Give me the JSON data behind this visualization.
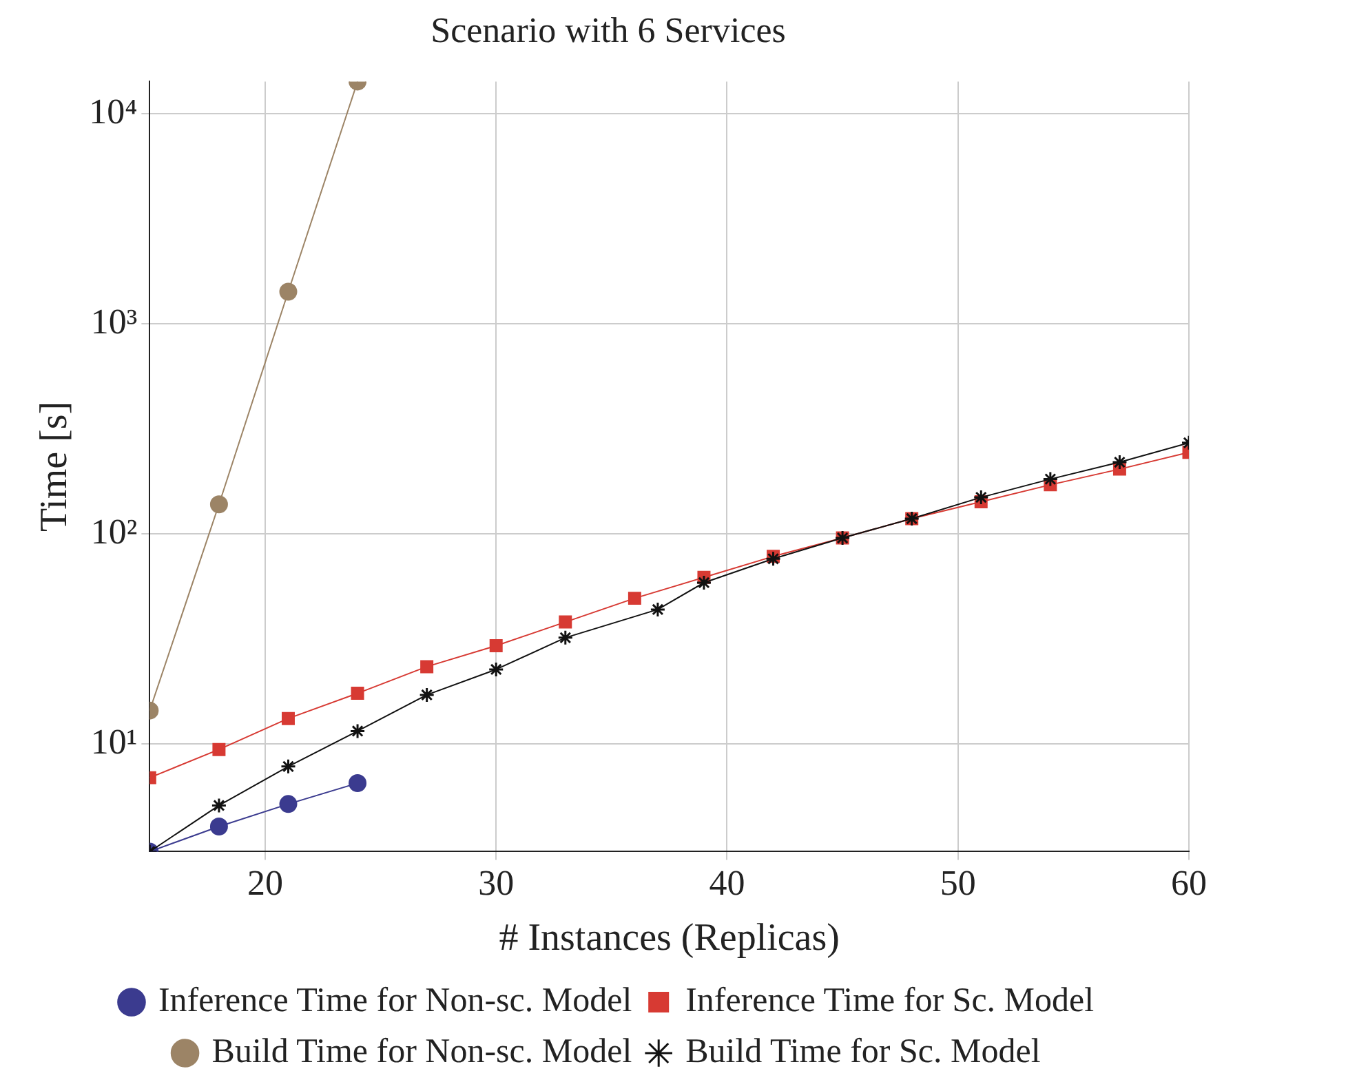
{
  "chart_data": {
    "type": "line",
    "title": "Scenario with 6 Services",
    "xlabel": "# Instances (Replicas)",
    "ylabel": "Time [s]",
    "log": "y",
    "grid": true,
    "legend": "bottom",
    "xlim": [
      15,
      60
    ],
    "xticks": [
      20,
      30,
      40,
      50,
      60
    ],
    "ylim": [
      3.07,
      14200
    ],
    "yticks": [
      {
        "value": 10,
        "label": "10¹"
      },
      {
        "value": 100,
        "label": "10²"
      },
      {
        "value": 1000,
        "label": "10³"
      },
      {
        "value": 10000,
        "label": "10⁴"
      }
    ],
    "series": [
      {
        "name": "Inference Time for Non-sc. Model",
        "color": "#3b3b8f",
        "marker": "circle",
        "x": [
          15,
          18,
          21,
          24
        ],
        "values": [
          3.07,
          4.04,
          5.17,
          6.5
        ]
      },
      {
        "name": "Inference Time for Sc. Model",
        "color": "#d73a33",
        "marker": "square",
        "x": [
          15,
          18,
          21,
          24,
          27,
          30,
          33,
          36,
          39,
          42,
          45,
          48,
          51,
          54,
          57,
          60
        ],
        "values": [
          6.9,
          9.4,
          13.2,
          17.4,
          23.3,
          29.3,
          38,
          49.3,
          62,
          78,
          95.5,
          118,
          142,
          171,
          203,
          244
        ]
      },
      {
        "name": "Build Time for Non-sc. Model",
        "color": "#9c8466",
        "marker": "circle",
        "x": [
          15,
          18,
          21,
          24
        ],
        "values": [
          14.4,
          138,
          1420,
          14200
        ]
      },
      {
        "name": "Build Time for Sc. Model",
        "color": "#111111",
        "marker": "cross",
        "x": [
          15,
          18,
          21,
          24,
          27,
          30,
          33,
          37,
          39,
          42,
          45,
          48,
          51,
          54,
          57,
          60
        ],
        "values": [
          3.07,
          5.09,
          7.8,
          11.5,
          17.1,
          22.6,
          32,
          43.6,
          58.5,
          76,
          95.5,
          118,
          149,
          182,
          219,
          271
        ]
      }
    ]
  }
}
